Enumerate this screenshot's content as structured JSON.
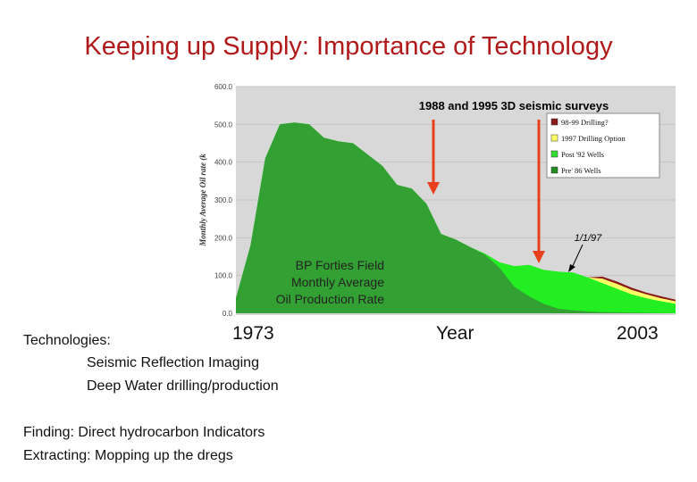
{
  "slide": {
    "title": "Keeping up Supply: Importance of Technology"
  },
  "chart_data": {
    "type": "area",
    "ylabel": "Monthly Average Oil rate (k",
    "xlabel": "Year",
    "ylim": [
      0,
      600
    ],
    "yticks": [
      "0.0",
      "100.0",
      "200.0",
      "300.0",
      "400.0",
      "500.0",
      "600.0"
    ],
    "x_start_label": "1973",
    "x_end_label": "2003",
    "x_range": [
      1973,
      2003
    ],
    "survey_label": "1988  and  1995  3D seismic surveys",
    "survey_years": [
      1988,
      1995
    ],
    "date_marker": {
      "label": "1/1/97",
      "x": 1997
    },
    "inset_text": [
      "BP Forties Field",
      "Monthly Average",
      "Oil Production Rate"
    ],
    "legend": {
      "position": "top-right",
      "items": [
        {
          "name": "98-99 Drilling?",
          "color": "#8b1a1a"
        },
        {
          "name": "1997 Drilling Option",
          "color": "#ffff66"
        },
        {
          "name": "Post '92 Wells",
          "color": "#33dd33"
        },
        {
          "name": "Pre' 86 Wells",
          "color": "#228b22"
        }
      ]
    },
    "series": [
      {
        "name": "Pre' 86 Wells",
        "color": "#33a033",
        "points": [
          [
            1973,
            40
          ],
          [
            1974,
            180
          ],
          [
            1975,
            410
          ],
          [
            1976,
            500
          ],
          [
            1977,
            505
          ],
          [
            1978,
            500
          ],
          [
            1979,
            465
          ],
          [
            1980,
            455
          ],
          [
            1981,
            450
          ],
          [
            1982,
            420
          ],
          [
            1983,
            390
          ],
          [
            1984,
            340
          ],
          [
            1985,
            330
          ],
          [
            1986,
            290
          ],
          [
            1987,
            210
          ],
          [
            1988,
            195
          ],
          [
            1989,
            175
          ],
          [
            1990,
            155
          ],
          [
            1991,
            120
          ],
          [
            1992,
            70
          ],
          [
            1993,
            45
          ],
          [
            1994,
            25
          ],
          [
            1995,
            12
          ],
          [
            1996,
            8
          ],
          [
            1997,
            5
          ],
          [
            1998,
            3
          ],
          [
            2003,
            0
          ]
        ]
      },
      {
        "name": "Post '92 Wells",
        "color": "#22ee22",
        "points": [
          [
            1973,
            40
          ],
          [
            1974,
            180
          ],
          [
            1975,
            410
          ],
          [
            1976,
            500
          ],
          [
            1977,
            505
          ],
          [
            1978,
            500
          ],
          [
            1979,
            465
          ],
          [
            1980,
            455
          ],
          [
            1981,
            450
          ],
          [
            1982,
            420
          ],
          [
            1983,
            390
          ],
          [
            1984,
            340
          ],
          [
            1985,
            330
          ],
          [
            1986,
            290
          ],
          [
            1987,
            210
          ],
          [
            1988,
            195
          ],
          [
            1989,
            175
          ],
          [
            1990,
            158
          ],
          [
            1991,
            135
          ],
          [
            1992,
            125
          ],
          [
            1993,
            128
          ],
          [
            1994,
            115
          ],
          [
            1995,
            110
          ],
          [
            1996,
            108
          ],
          [
            1997,
            95
          ],
          [
            1998,
            80
          ],
          [
            1999,
            65
          ],
          [
            2000,
            50
          ],
          [
            2001,
            40
          ],
          [
            2002,
            32
          ],
          [
            2003,
            25
          ]
        ]
      },
      {
        "name": "1997 Drilling Option",
        "color": "#ffff66",
        "points": [
          [
            1997,
            95
          ],
          [
            1998,
            92
          ],
          [
            1999,
            78
          ],
          [
            2000,
            62
          ],
          [
            2001,
            50
          ],
          [
            2002,
            40
          ],
          [
            2003,
            32
          ]
        ]
      },
      {
        "name": "98-99 Drilling?",
        "color": "#8b1a1a",
        "points": [
          [
            1997,
            95
          ],
          [
            1998,
            97
          ],
          [
            1999,
            84
          ],
          [
            2000,
            68
          ],
          [
            2001,
            55
          ],
          [
            2002,
            45
          ],
          [
            2003,
            36
          ]
        ]
      }
    ]
  },
  "technologies": {
    "heading": "Technologies:",
    "items": [
      "Seismic Reflection Imaging",
      "Deep Water drilling/production"
    ]
  },
  "notes": [
    "Finding: Direct hydrocarbon Indicators",
    "Extracting: Mopping up the dregs"
  ]
}
